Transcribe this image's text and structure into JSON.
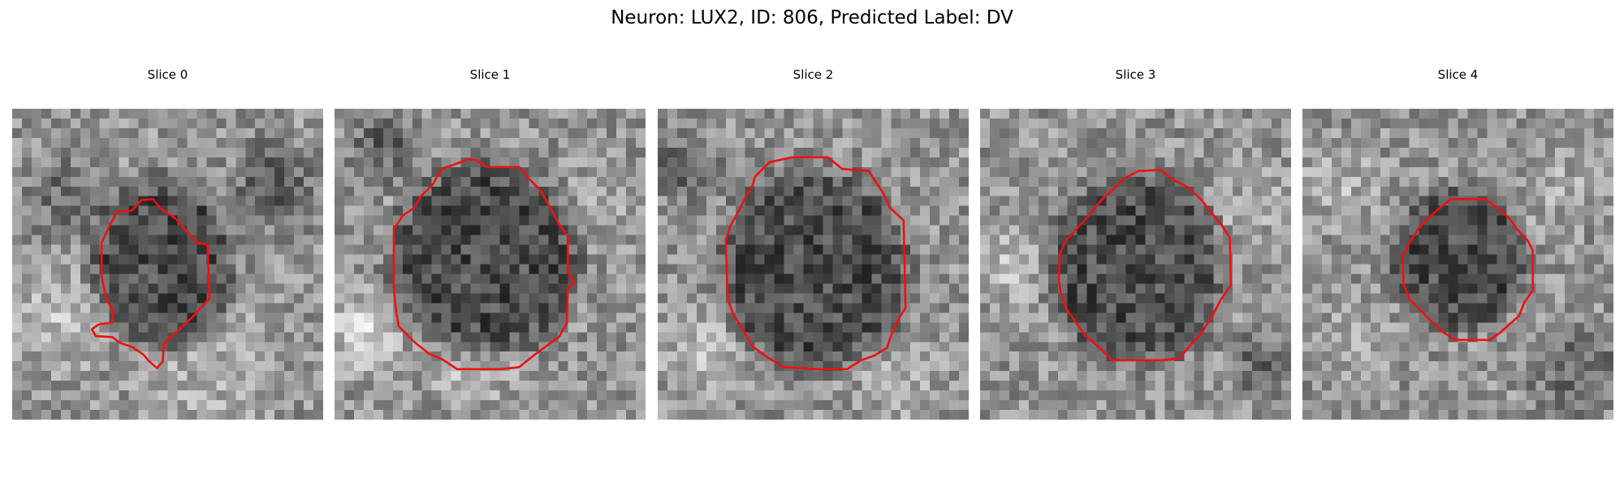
{
  "figure": {
    "title": "Neuron: LUX2, ID: 806, Predicted Label: DV"
  },
  "panels": [
    {
      "title": "Slice 0",
      "image": "grayscale microscopy slice with red neuron contour overlay"
    },
    {
      "title": "Slice 1",
      "image": "grayscale microscopy slice with red neuron contour overlay"
    },
    {
      "title": "Slice 2",
      "image": "grayscale microscopy slice with red neuron contour overlay"
    },
    {
      "title": "Slice 3",
      "image": "grayscale microscopy slice with red neuron contour overlay"
    },
    {
      "title": "Slice 4",
      "image": "grayscale microscopy slice with red neuron contour overlay"
    }
  ],
  "colors": {
    "contour": "#ee1111",
    "background": "#ffffff",
    "text": "#000000"
  }
}
